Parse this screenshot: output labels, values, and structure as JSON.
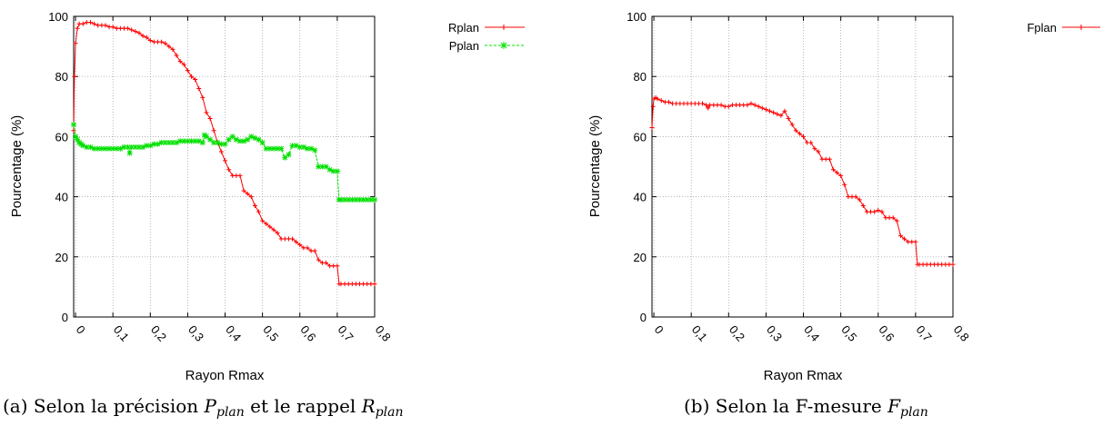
{
  "chart_data": [
    {
      "type": "line",
      "ylabel": "Pourcentage (%)",
      "xlabel": "Rayon Rmax",
      "xlim": [
        -0.005,
        0.8
      ],
      "ylim": [
        0,
        100
      ],
      "yticks": [
        "0",
        "20",
        "40",
        "60",
        "80",
        "100"
      ],
      "xticks": [
        "0",
        "0,1",
        "0,2",
        "0,3",
        "0,4",
        "0,5",
        "0,6",
        "0,7",
        "0,8"
      ],
      "xtick_values": [
        0,
        0.1,
        0.2,
        0.3,
        0.4,
        0.5,
        0.6,
        0.7,
        0.8
      ],
      "grid": true,
      "legend_position": "top-right",
      "caption": {
        "prefix": "(a) Selon la précision ",
        "p_main": "P",
        "p_sub": "plan",
        "mid": " et le rappel ",
        "r_main": "R",
        "r_sub": "plan"
      },
      "series": [
        {
          "name": "Rplan",
          "color": "#ff0000",
          "x": [
            -0.005,
            -0.003,
            0.0,
            0.005,
            0.01,
            0.02,
            0.03,
            0.04,
            0.05,
            0.06,
            0.07,
            0.08,
            0.09,
            0.1,
            0.11,
            0.12,
            0.13,
            0.14,
            0.15,
            0.16,
            0.17,
            0.18,
            0.19,
            0.2,
            0.21,
            0.22,
            0.23,
            0.24,
            0.25,
            0.26,
            0.27,
            0.28,
            0.29,
            0.3,
            0.31,
            0.32,
            0.33,
            0.34,
            0.35,
            0.36,
            0.37,
            0.38,
            0.39,
            0.4,
            0.41,
            0.42,
            0.43,
            0.44,
            0.45,
            0.46,
            0.47,
            0.48,
            0.49,
            0.5,
            0.51,
            0.52,
            0.53,
            0.54,
            0.55,
            0.56,
            0.57,
            0.58,
            0.59,
            0.6,
            0.61,
            0.62,
            0.63,
            0.64,
            0.65,
            0.66,
            0.67,
            0.68,
            0.69,
            0.7,
            0.705,
            0.71,
            0.72,
            0.73,
            0.74,
            0.75,
            0.76,
            0.77,
            0.78,
            0.79,
            0.8
          ],
          "y": [
            62,
            80,
            91,
            96,
            97.5,
            97.5,
            98,
            98,
            97.5,
            97,
            97,
            97,
            96.5,
            96.5,
            96,
            96,
            96,
            96,
            95.5,
            95,
            94.5,
            93.5,
            93,
            92,
            91.5,
            91.5,
            91.5,
            91,
            90,
            89,
            87,
            85,
            84,
            82,
            80,
            79,
            76,
            73,
            68,
            66,
            62,
            58,
            55,
            52,
            49,
            47,
            47,
            47,
            42,
            41,
            40,
            37,
            35,
            32,
            31,
            30,
            29,
            28,
            26,
            26,
            26,
            26,
            25,
            24,
            23,
            23,
            22,
            22,
            19,
            18,
            18,
            17,
            17,
            17,
            11,
            11,
            11,
            11,
            11,
            11,
            11,
            11,
            11,
            11,
            11
          ]
        },
        {
          "name": "Pplan",
          "color": "#00e000",
          "x": [
            -0.005,
            0.0,
            0.005,
            0.01,
            0.015,
            0.02,
            0.03,
            0.04,
            0.05,
            0.06,
            0.07,
            0.08,
            0.09,
            0.1,
            0.11,
            0.12,
            0.13,
            0.14,
            0.145,
            0.15,
            0.16,
            0.17,
            0.18,
            0.19,
            0.2,
            0.21,
            0.22,
            0.23,
            0.24,
            0.25,
            0.26,
            0.27,
            0.28,
            0.29,
            0.3,
            0.31,
            0.32,
            0.33,
            0.34,
            0.345,
            0.35,
            0.36,
            0.37,
            0.38,
            0.39,
            0.4,
            0.41,
            0.42,
            0.43,
            0.44,
            0.45,
            0.46,
            0.47,
            0.48,
            0.49,
            0.5,
            0.51,
            0.52,
            0.53,
            0.54,
            0.55,
            0.56,
            0.57,
            0.58,
            0.59,
            0.6,
            0.61,
            0.62,
            0.63,
            0.64,
            0.65,
            0.66,
            0.67,
            0.68,
            0.69,
            0.7,
            0.705,
            0.71,
            0.72,
            0.73,
            0.74,
            0.75,
            0.76,
            0.77,
            0.78,
            0.79,
            0.8
          ],
          "y": [
            64,
            60,
            59,
            58,
            57.5,
            57,
            56.5,
            56.5,
            56,
            56,
            56,
            56,
            56,
            56,
            56,
            56,
            56.5,
            56.5,
            54.5,
            56.5,
            56.5,
            56.5,
            56.5,
            57,
            57,
            57.5,
            57.5,
            58,
            58,
            58,
            58,
            58,
            58.5,
            58.5,
            58.5,
            58.5,
            58.5,
            58.5,
            58,
            60.5,
            60,
            59,
            58,
            58,
            57.5,
            57.5,
            59,
            60,
            59,
            58.5,
            58.5,
            59,
            60,
            59.5,
            59,
            58,
            56,
            56,
            56,
            56,
            56,
            53,
            54,
            57,
            57,
            56.5,
            56.5,
            56,
            56,
            55.5,
            50,
            50,
            50,
            49,
            48.5,
            48.5,
            39,
            39,
            39,
            39,
            39,
            39,
            39,
            39,
            39,
            39,
            39
          ]
        }
      ]
    },
    {
      "type": "line",
      "ylabel": "Pourcentage (%)",
      "xlabel": "Rayon Rmax",
      "xlim": [
        -0.005,
        0.8
      ],
      "ylim": [
        0,
        100
      ],
      "yticks": [
        "0",
        "20",
        "40",
        "60",
        "80",
        "100"
      ],
      "xticks": [
        "0",
        "0,1",
        "0,2",
        "0,3",
        "0,4",
        "0,5",
        "0,6",
        "0,7",
        "0,8"
      ],
      "xtick_values": [
        0,
        0.1,
        0.2,
        0.3,
        0.4,
        0.5,
        0.6,
        0.7,
        0.8
      ],
      "grid": true,
      "legend_position": "top-right",
      "caption": {
        "prefix": "(b) Selon la F-mesure ",
        "f_main": "F",
        "f_sub": "plan"
      },
      "series": [
        {
          "name": "Fplan",
          "color": "#ff0000",
          "x": [
            -0.005,
            -0.002,
            0.0,
            0.005,
            0.01,
            0.02,
            0.03,
            0.04,
            0.05,
            0.06,
            0.07,
            0.08,
            0.09,
            0.1,
            0.11,
            0.12,
            0.13,
            0.14,
            0.145,
            0.15,
            0.16,
            0.17,
            0.18,
            0.19,
            0.2,
            0.21,
            0.22,
            0.23,
            0.24,
            0.25,
            0.26,
            0.27,
            0.28,
            0.29,
            0.3,
            0.31,
            0.32,
            0.33,
            0.34,
            0.35,
            0.36,
            0.37,
            0.38,
            0.39,
            0.4,
            0.41,
            0.42,
            0.43,
            0.44,
            0.45,
            0.46,
            0.47,
            0.48,
            0.49,
            0.5,
            0.51,
            0.52,
            0.53,
            0.54,
            0.55,
            0.56,
            0.57,
            0.58,
            0.59,
            0.6,
            0.61,
            0.62,
            0.63,
            0.64,
            0.65,
            0.66,
            0.67,
            0.68,
            0.69,
            0.7,
            0.705,
            0.71,
            0.72,
            0.73,
            0.74,
            0.75,
            0.76,
            0.77,
            0.78,
            0.79,
            0.8
          ],
          "y": [
            63,
            70,
            72.5,
            73,
            72.5,
            72,
            71.5,
            71.5,
            71,
            71,
            71,
            71,
            71,
            71,
            71,
            71,
            71,
            70.5,
            69.5,
            70.5,
            70.5,
            70.5,
            70.5,
            70,
            70,
            70.5,
            70.5,
            70.5,
            70.5,
            70.5,
            71,
            70.5,
            70,
            69.5,
            69,
            68.5,
            68,
            67.5,
            67,
            68.5,
            66,
            64,
            62,
            61,
            60,
            58,
            58,
            56,
            55,
            52.5,
            52.5,
            52.5,
            49,
            48,
            47,
            44,
            40,
            40,
            40,
            39,
            37,
            35,
            35,
            35,
            35.5,
            35,
            33,
            33,
            33,
            32,
            27,
            26,
            25,
            25,
            25,
            17.5,
            17.5,
            17.5,
            17.5,
            17.5,
            17.5,
            17.5,
            17.5,
            17.5,
            17.5,
            17.5
          ]
        }
      ]
    }
  ]
}
